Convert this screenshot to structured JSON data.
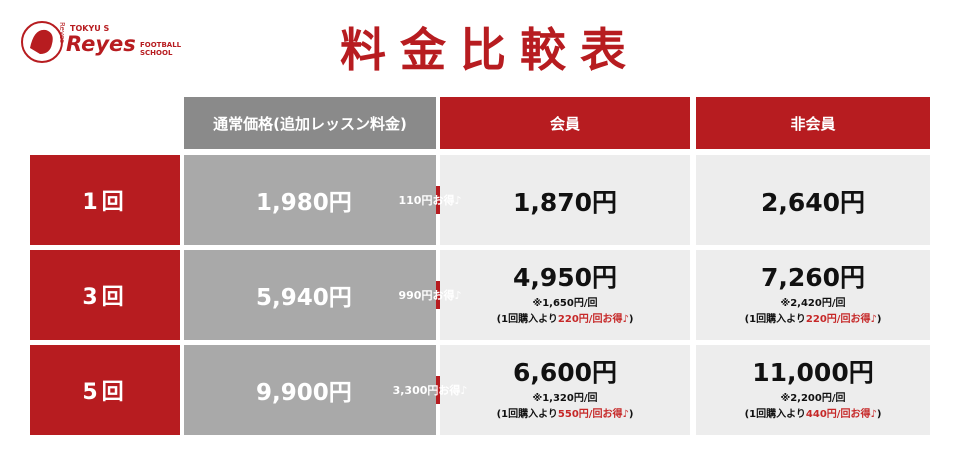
{
  "header": {
    "title": "料金比較表",
    "logo": {
      "brand_top": "TOKYU S",
      "brand": "Reyes",
      "vertical": "Reyes",
      "sub_1": "FOOTBALL",
      "sub_2": "SCHOOL"
    }
  },
  "table": {
    "columns": [
      "通常価格(追加レッスン料金)",
      "会員",
      "非会員"
    ],
    "rows": [
      {
        "label": "1回",
        "regular": "1,980円",
        "savings": "110円お得♪",
        "member": {
          "price": "1,870円"
        },
        "nonmember": {
          "price": "2,640円"
        }
      },
      {
        "label": "3回",
        "regular": "5,940円",
        "savings": "990円お得♪",
        "member": {
          "price": "4,950円",
          "per": "※1,650円/回",
          "note": {
            "before": "(1回購入より",
            "highlight": "220円/回お得♪",
            "after": ")"
          }
        },
        "nonmember": {
          "price": "7,260円",
          "per": "※2,420円/回",
          "note": {
            "before": "(1回購入より",
            "highlight": "220円/回お得♪",
            "after": ")"
          }
        }
      },
      {
        "label": "5回",
        "regular": "9,900円",
        "savings": "3,300円お得♪",
        "member": {
          "price": "6,600円",
          "per": "※1,320円/回",
          "note": {
            "before": "(1回購入より",
            "highlight": "550円/回お得♪",
            "after": ")"
          }
        },
        "nonmember": {
          "price": "11,000円",
          "per": "※2,200円/回",
          "note": {
            "before": "(1回購入より",
            "highlight": "440円/回お得♪",
            "after": ")"
          }
        }
      }
    ]
  }
}
